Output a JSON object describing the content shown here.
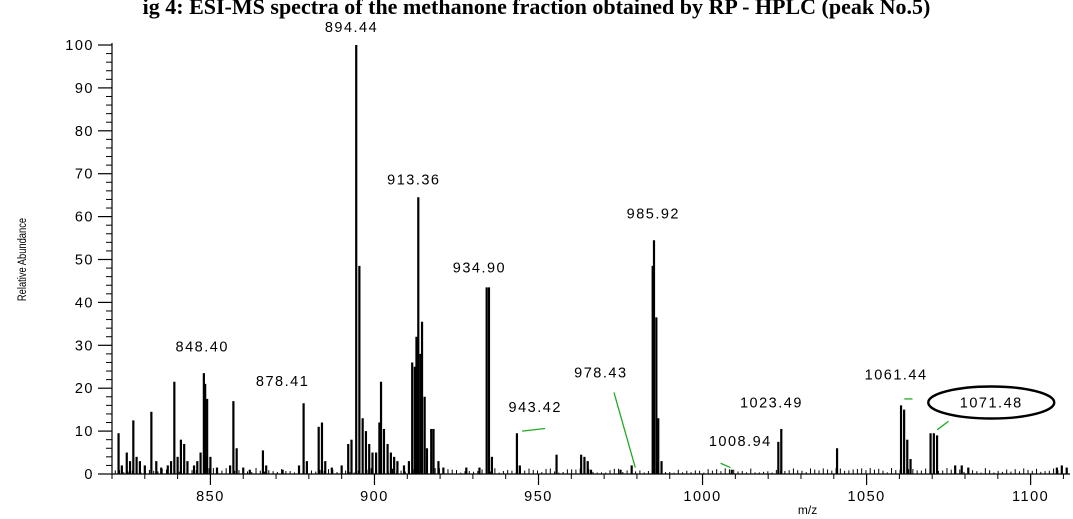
{
  "title": "ig 4: ESI-MS spectra of the methanone fraction obtained by RP - HPLC (peak No.5)",
  "chart_data": {
    "type": "bar",
    "xlabel": "m/z",
    "ylabel": "Relative Abundance",
    "xlim": [
      820,
      1112
    ],
    "ylim": [
      0,
      100
    ],
    "x_ticks": [
      850,
      900,
      950,
      1000,
      1050,
      1100
    ],
    "y_ticks": [
      0,
      10,
      20,
      30,
      40,
      50,
      60,
      70,
      80,
      90,
      100
    ],
    "grid": false,
    "peaks": [
      {
        "x": 822,
        "y": 9.5
      },
      {
        "x": 823,
        "y": 2
      },
      {
        "x": 824.5,
        "y": 5
      },
      {
        "x": 825.5,
        "y": 3
      },
      {
        "x": 826.5,
        "y": 12.5
      },
      {
        "x": 827.5,
        "y": 4
      },
      {
        "x": 828.5,
        "y": 3
      },
      {
        "x": 830,
        "y": 2
      },
      {
        "x": 832,
        "y": 14.5
      },
      {
        "x": 833.5,
        "y": 3
      },
      {
        "x": 835,
        "y": 1.5
      },
      {
        "x": 837,
        "y": 2
      },
      {
        "x": 838,
        "y": 3
      },
      {
        "x": 839,
        "y": 21.5
      },
      {
        "x": 840,
        "y": 4
      },
      {
        "x": 841,
        "y": 8
      },
      {
        "x": 842,
        "y": 7
      },
      {
        "x": 843,
        "y": 3
      },
      {
        "x": 845,
        "y": 2
      },
      {
        "x": 846,
        "y": 3
      },
      {
        "x": 847,
        "y": 5
      },
      {
        "x": 848,
        "y": 23.5
      },
      {
        "x": 848.4,
        "y": 21
      },
      {
        "x": 849,
        "y": 17.5
      },
      {
        "x": 850,
        "y": 4
      },
      {
        "x": 852,
        "y": 1.5
      },
      {
        "x": 856,
        "y": 2
      },
      {
        "x": 857,
        "y": 17
      },
      {
        "x": 858,
        "y": 6
      },
      {
        "x": 860,
        "y": 1.5
      },
      {
        "x": 862,
        "y": 1
      },
      {
        "x": 866,
        "y": 5.5
      },
      {
        "x": 867,
        "y": 2
      },
      {
        "x": 872,
        "y": 1
      },
      {
        "x": 877,
        "y": 2
      },
      {
        "x": 878.4,
        "y": 16.5
      },
      {
        "x": 879.4,
        "y": 3
      },
      {
        "x": 883,
        "y": 11
      },
      {
        "x": 884,
        "y": 12
      },
      {
        "x": 885,
        "y": 3
      },
      {
        "x": 887,
        "y": 1.5
      },
      {
        "x": 890,
        "y": 2
      },
      {
        "x": 892,
        "y": 7
      },
      {
        "x": 893,
        "y": 8
      },
      {
        "x": 894.44,
        "y": 100
      },
      {
        "x": 895.4,
        "y": 48.5
      },
      {
        "x": 896.4,
        "y": 13
      },
      {
        "x": 897.4,
        "y": 10
      },
      {
        "x": 898.4,
        "y": 7
      },
      {
        "x": 899.4,
        "y": 5
      },
      {
        "x": 900.5,
        "y": 5
      },
      {
        "x": 901.5,
        "y": 12
      },
      {
        "x": 902,
        "y": 21.5
      },
      {
        "x": 902.9,
        "y": 10.5
      },
      {
        "x": 904,
        "y": 7
      },
      {
        "x": 905,
        "y": 5
      },
      {
        "x": 906,
        "y": 4
      },
      {
        "x": 907,
        "y": 3
      },
      {
        "x": 909,
        "y": 2
      },
      {
        "x": 910.5,
        "y": 3
      },
      {
        "x": 911.5,
        "y": 26
      },
      {
        "x": 912.3,
        "y": 25
      },
      {
        "x": 912.8,
        "y": 32
      },
      {
        "x": 913.36,
        "y": 64.5
      },
      {
        "x": 914,
        "y": 28
      },
      {
        "x": 914.5,
        "y": 35.5
      },
      {
        "x": 915.3,
        "y": 18
      },
      {
        "x": 916,
        "y": 6
      },
      {
        "x": 917.3,
        "y": 10.5
      },
      {
        "x": 918,
        "y": 10.5
      },
      {
        "x": 919.5,
        "y": 3
      },
      {
        "x": 921,
        "y": 1.5
      },
      {
        "x": 928,
        "y": 1.5
      },
      {
        "x": 932,
        "y": 1.5
      },
      {
        "x": 934.2,
        "y": 43.5
      },
      {
        "x": 934.9,
        "y": 43.5
      },
      {
        "x": 935.8,
        "y": 4
      },
      {
        "x": 943.42,
        "y": 9.5
      },
      {
        "x": 944.3,
        "y": 2
      },
      {
        "x": 955.5,
        "y": 4.5
      },
      {
        "x": 963,
        "y": 4.5
      },
      {
        "x": 964,
        "y": 4
      },
      {
        "x": 965,
        "y": 3
      },
      {
        "x": 966,
        "y": 1
      },
      {
        "x": 975,
        "y": 1
      },
      {
        "x": 978.4,
        "y": 2
      },
      {
        "x": 984.8,
        "y": 48.5
      },
      {
        "x": 985.2,
        "y": 54.5
      },
      {
        "x": 985.92,
        "y": 36.5
      },
      {
        "x": 986.5,
        "y": 13
      },
      {
        "x": 987.5,
        "y": 3
      },
      {
        "x": 1008.9,
        "y": 1
      },
      {
        "x": 1023.1,
        "y": 7.5
      },
      {
        "x": 1024,
        "y": 10.5
      },
      {
        "x": 1041,
        "y": 6
      },
      {
        "x": 1060.5,
        "y": 16
      },
      {
        "x": 1061.44,
        "y": 15
      },
      {
        "x": 1062.4,
        "y": 8
      },
      {
        "x": 1063.4,
        "y": 3.5
      },
      {
        "x": 1069.5,
        "y": 9.5
      },
      {
        "x": 1070.5,
        "y": 9.5
      },
      {
        "x": 1071.48,
        "y": 9
      },
      {
        "x": 1077,
        "y": 2
      },
      {
        "x": 1079,
        "y": 2
      },
      {
        "x": 1081,
        "y": 1.5
      },
      {
        "x": 1108,
        "y": 1.5
      },
      {
        "x": 1109.5,
        "y": 2
      },
      {
        "x": 1111,
        "y": 1.5
      }
    ],
    "labels": [
      {
        "text": "848.40",
        "x": 847.5,
        "y": 28.5
      },
      {
        "text": "878.41",
        "x": 872,
        "y": 20.5
      },
      {
        "text": "894.44",
        "x": 893,
        "y": 103
      },
      {
        "text": "913.36",
        "x": 912,
        "y": 67.5
      },
      {
        "text": "934.90",
        "x": 932,
        "y": 47
      },
      {
        "text": "943.42",
        "x": 949,
        "y": 14.5
      },
      {
        "text": "978.43",
        "x": 969,
        "y": 22.5
      },
      {
        "text": "985.92",
        "x": 985,
        "y": 59.5
      },
      {
        "text": "1008.94",
        "x": 1011.5,
        "y": 6.5
      },
      {
        "text": "1023.49",
        "x": 1021,
        "y": 15.5
      },
      {
        "text": "1061.44",
        "x": 1059,
        "y": 22
      },
      {
        "text": "1071.48",
        "x": 1088,
        "y": 15.5
      }
    ],
    "leader_lines": [
      {
        "from": [
          945,
          10
        ],
        "to": [
          952,
          10.6
        ]
      },
      {
        "from": [
          973,
          19
        ],
        "to": [
          979.5,
          1.5
        ]
      },
      {
        "from": [
          1005.5,
          2.5
        ],
        "to": [
          1008.5,
          1.5
        ]
      },
      {
        "from": [
          1061.5,
          17.5
        ],
        "to": [
          1064,
          17.5
        ]
      },
      {
        "from": [
          1071.5,
          10.3
        ],
        "to": [
          1075,
          12.3
        ]
      }
    ],
    "circled_label": "1071.48",
    "colors": {
      "peaks": "#000000",
      "leader_lines": "#22aa22",
      "axes": "#000000"
    }
  }
}
